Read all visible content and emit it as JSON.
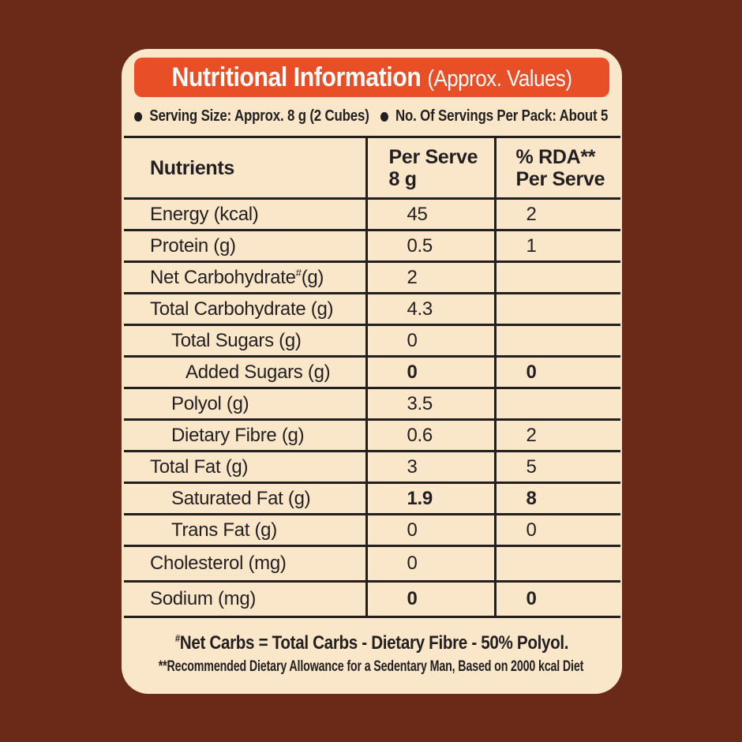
{
  "colors": {
    "background": "#6A2A17",
    "card": "#FAE7CA",
    "banner": "#E84F26",
    "ink": "#231F20",
    "banner_text": "#FFFFFF"
  },
  "header": {
    "title": "Nutritional Information",
    "subtitle": "(Approx. Values)"
  },
  "serving": {
    "bullet": "",
    "serving_size": "Serving Size: Approx. 8 g (2 Cubes)",
    "servings_per_pack": "No. Of Servings Per Pack: About 5"
  },
  "table": {
    "headers": {
      "nutrients": "Nutrients",
      "per_serve": [
        "Per Serve",
        "8 g"
      ],
      "rda": [
        "% RDA**",
        "Per Serve"
      ]
    },
    "rows": [
      {
        "label": "Energy (kcal)",
        "per_serve": "45",
        "rda": "2",
        "indent": 0,
        "bold": false,
        "tall": false
      },
      {
        "label": "Protein (g)",
        "per_serve": "0.5",
        "rda": "1",
        "indent": 0,
        "bold": false,
        "tall": false
      },
      {
        "label": "Net Carbohydrate",
        "sup": "#",
        "tail": "(g)",
        "per_serve": "2",
        "rda": "",
        "indent": 0,
        "bold": false,
        "tall": false
      },
      {
        "label": "Total Carbohydrate (g)",
        "per_serve": "4.3",
        "rda": "",
        "indent": 0,
        "bold": false,
        "tall": false
      },
      {
        "label": "Total Sugars (g)",
        "per_serve": "0",
        "rda": "",
        "indent": 1,
        "bold": false,
        "tall": false
      },
      {
        "label": "Added Sugars (g)",
        "per_serve": "0",
        "rda": "0",
        "indent": 2,
        "bold": true,
        "tall": false
      },
      {
        "label": "Polyol (g)",
        "per_serve": "3.5",
        "rda": "",
        "indent": 1,
        "bold": false,
        "tall": false
      },
      {
        "label": "Dietary Fibre (g)",
        "per_serve": "0.6",
        "rda": "2",
        "indent": 1,
        "bold": false,
        "tall": false
      },
      {
        "label": "Total Fat (g)",
        "per_serve": "3",
        "rda": "5",
        "indent": 0,
        "bold": false,
        "tall": false
      },
      {
        "label": "Saturated Fat (g)",
        "per_serve": "1.9",
        "rda": "8",
        "indent": 1,
        "bold": true,
        "tall": false
      },
      {
        "label": "Trans Fat (g)",
        "per_serve": "0",
        "rda": "0",
        "indent": 1,
        "bold": false,
        "tall": false
      },
      {
        "label": "Cholesterol (mg)",
        "per_serve": "0",
        "rda": "",
        "indent": 0,
        "bold": false,
        "tall": true
      },
      {
        "label": "Sodium (mg)",
        "per_serve": "0",
        "rda": "0",
        "indent": 0,
        "bold": true,
        "tall": true
      }
    ]
  },
  "footnotes": {
    "net_carbs": {
      "sup": "#",
      "text": "Net Carbs = Total Carbs - Dietary Fibre - 50% Polyol."
    },
    "rda": "**Recommended Dietary Allowance for a Sedentary Man, Based on 2000 kcal Diet"
  }
}
